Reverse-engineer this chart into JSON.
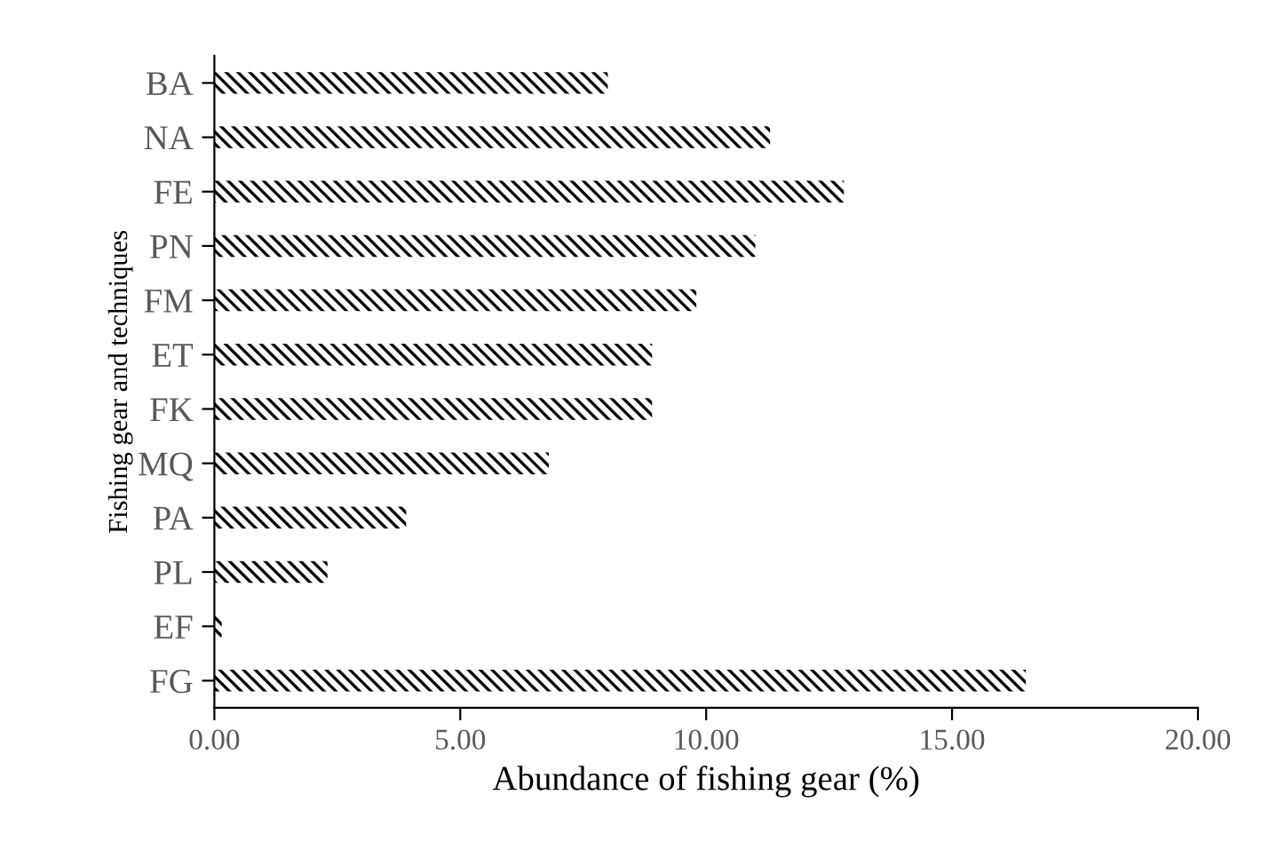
{
  "chart_data": {
    "type": "bar",
    "orientation": "horizontal",
    "xlabel": "Abundance of fishing gear (%)",
    "ylabel": "Fishing gear and techniques",
    "categories": [
      "BA",
      "NA",
      "FE",
      "PN",
      "FM",
      "ET",
      "FK",
      "MQ",
      "PA",
      "PL",
      "EF",
      "FG"
    ],
    "values": [
      8.0,
      11.3,
      12.8,
      11.0,
      9.8,
      8.9,
      8.9,
      6.8,
      3.9,
      2.3,
      0.15,
      16.5
    ],
    "color": "#000000",
    "xlim": [
      0,
      20
    ],
    "xticks": [
      {
        "value": 0,
        "label": "0.00"
      },
      {
        "value": 5,
        "label": "5.00"
      },
      {
        "value": 10,
        "label": "10.00"
      },
      {
        "value": 15,
        "label": "15.00"
      },
      {
        "value": 20,
        "label": "20.00"
      }
    ],
    "grid": false,
    "legend": false
  }
}
